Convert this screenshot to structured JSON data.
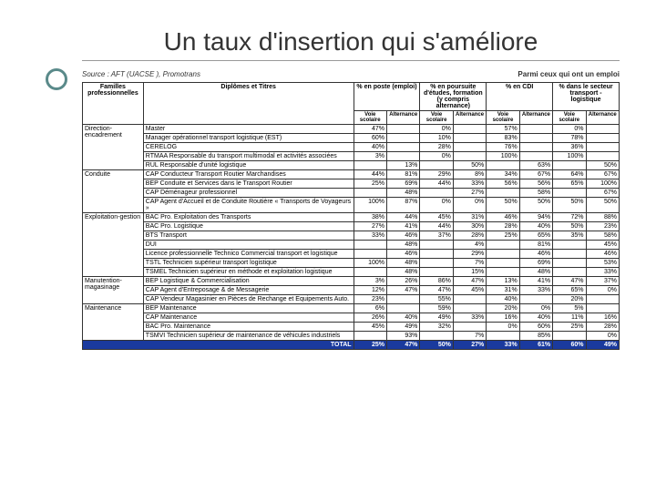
{
  "title": "Un taux d'insertion qui s'améliore",
  "source_line": "Source : AFT (UACSE ), Promotrans",
  "among_line": "Parmi ceux qui ont un emploi",
  "headers": {
    "families": "Familles professionnelles",
    "diplomas": "Diplômes et Titres",
    "pct_poste": "% en poste (emploi)",
    "pct_pursuit": "% en poursuite d'études, formation (y compris alternance)",
    "pct_cdi": "% en CDI",
    "pct_sector": "% dans le secteur transport - logistique",
    "sub_voie": "Voie scolaire",
    "sub_alt": "Alternance"
  },
  "families": [
    {
      "name": "Direction-encadrement",
      "rows": [
        {
          "d": "Master",
          "v": [
            "47%",
            "",
            "0%",
            "",
            "57%",
            "",
            "0%",
            ""
          ]
        },
        {
          "d": "Manager opérationnel transport logistique (EST)",
          "v": [
            "60%",
            "",
            "10%",
            "",
            "83%",
            "",
            "78%",
            ""
          ]
        },
        {
          "d": "CERELOG",
          "v": [
            "40%",
            "",
            "28%",
            "",
            "76%",
            "",
            "36%",
            ""
          ]
        },
        {
          "d": "RTMAA Responsable du transport multimodal et activités associées",
          "v": [
            "3%",
            "",
            "0%",
            "",
            "100%",
            "",
            "100%",
            ""
          ]
        },
        {
          "d": "RUL Responsable d'unité logistique",
          "v": [
            "",
            "13%",
            "",
            "50%",
            "",
            "63%",
            "",
            "50%"
          ]
        }
      ]
    },
    {
      "name": "Conduite",
      "rows": [
        {
          "d": "CAP Conducteur Transport Routier Marchandises",
          "v": [
            "44%",
            "81%",
            "29%",
            "8%",
            "34%",
            "67%",
            "64%",
            "67%"
          ]
        },
        {
          "d": "BEP Conduite et Services dans le Transport Routier",
          "v": [
            "25%",
            "69%",
            "44%",
            "33%",
            "56%",
            "56%",
            "65%",
            "100%"
          ]
        },
        {
          "d": "CAP Déménageur professionnel",
          "v": [
            "",
            "48%",
            "",
            "27%",
            "",
            "58%",
            "",
            "67%"
          ]
        },
        {
          "d": "CAP Agent d'Accueil et de Conduite Routière « Transports de Voyageurs »",
          "v": [
            "100%",
            "87%",
            "0%",
            "0%",
            "50%",
            "50%",
            "50%",
            "50%"
          ]
        }
      ]
    },
    {
      "name": "Exploitation-gestion",
      "rows": [
        {
          "d": "BAC Pro. Exploitation des Transports",
          "v": [
            "38%",
            "44%",
            "45%",
            "31%",
            "46%",
            "94%",
            "72%",
            "88%"
          ]
        },
        {
          "d": "BAC Pro. Logistique",
          "v": [
            "27%",
            "41%",
            "44%",
            "30%",
            "28%",
            "40%",
            "50%",
            "23%"
          ]
        },
        {
          "d": "BTS Transport",
          "v": [
            "33%",
            "46%",
            "37%",
            "28%",
            "25%",
            "65%",
            "35%",
            "58%"
          ]
        },
        {
          "d": "DUI",
          "v": [
            "",
            "48%",
            "",
            "4%",
            "",
            "81%",
            "",
            "45%"
          ]
        },
        {
          "d": "Licence professionnelle Technico Commercial transport et logistique",
          "v": [
            "",
            "46%",
            "",
            "29%",
            "",
            "46%",
            "",
            "46%"
          ]
        },
        {
          "d": "TSTL Technicien supérieur transport logistique",
          "v": [
            "100%",
            "48%",
            "",
            "7%",
            "",
            "69%",
            "",
            "53%"
          ]
        },
        {
          "d": "TSMEL Technicien supérieur en méthode et exploitation logistique",
          "v": [
            "",
            "48%",
            "",
            "15%",
            "",
            "48%",
            "",
            "33%"
          ]
        }
      ]
    },
    {
      "name": "Manutention-magasinage",
      "rows": [
        {
          "d": "BEP Logistique & Commercialisation",
          "v": [
            "3%",
            "26%",
            "86%",
            "47%",
            "13%",
            "41%",
            "47%",
            "37%"
          ]
        },
        {
          "d": "CAP Agent d'Entreposage & de Messagerie",
          "v": [
            "12%",
            "47%",
            "47%",
            "45%",
            "31%",
            "33%",
            "65%",
            "0%"
          ]
        },
        {
          "d": "CAP Vendeur Magasinier en Pièces de Rechange et Equipements Auto.",
          "v": [
            "23%",
            "",
            "55%",
            "",
            "40%",
            "",
            "20%",
            ""
          ]
        }
      ]
    },
    {
      "name": "Maintenance",
      "rows": [
        {
          "d": "BEP Maintenance",
          "v": [
            "6%",
            "",
            "59%",
            "",
            "20%",
            "0%",
            "5%",
            ""
          ]
        },
        {
          "d": "CAP Maintenance",
          "v": [
            "26%",
            "40%",
            "49%",
            "33%",
            "16%",
            "40%",
            "11%",
            "16%"
          ]
        },
        {
          "d": "BAC Pro. Maintenance",
          "v": [
            "45%",
            "49%",
            "32%",
            "",
            "0%",
            "60%",
            "25%",
            "28%"
          ]
        },
        {
          "d": "TSMVI Technicien supérieur de maintenance de véhicules industriels",
          "v": [
            "",
            "93%",
            "",
            "7%",
            "",
            "85%",
            "",
            "0%"
          ]
        }
      ]
    }
  ],
  "total": {
    "label": "TOTAL",
    "v": [
      "25%",
      "47%",
      "50%",
      "27%",
      "33%",
      "61%",
      "60%",
      "49%"
    ]
  },
  "colors": {
    "total_bg": "#1a3a9e",
    "bullet_border": "#5a8a8a"
  }
}
